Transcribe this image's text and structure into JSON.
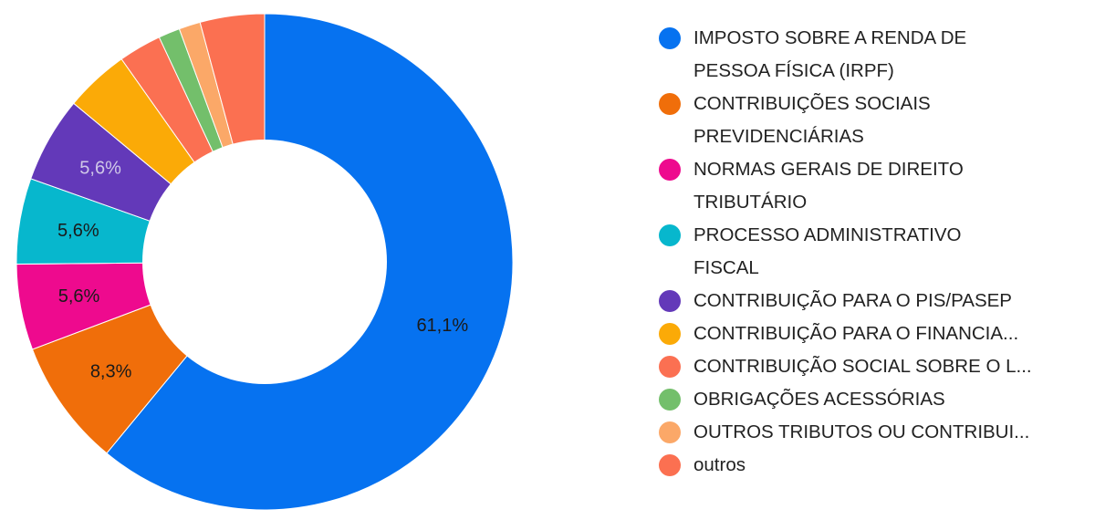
{
  "chart_data": {
    "type": "pie",
    "variant": "donut",
    "legend_position": "right",
    "slices": [
      {
        "name": "IMPOSTO SOBRE A RENDA DE PESSOA FÍSICA (IRPF)",
        "value": 61.1,
        "label": "61,1%",
        "color": "#0672f0",
        "label_color": "#1a1a1a"
      },
      {
        "name": "CONTRIBUIÇÕES SOCIAIS PREVIDENCIÁRIAS",
        "value": 8.3,
        "label": "8,3%",
        "color": "#f06e0a",
        "label_color": "#1a1a1a"
      },
      {
        "name": "NORMAS GERAIS DE DIREITO TRIBUTÁRIO",
        "value": 5.6,
        "label": "5,6%",
        "color": "#ee0a8e",
        "label_color": "#1a1a1a"
      },
      {
        "name": "PROCESSO ADMINISTRATIVO FISCAL",
        "value": 5.6,
        "label": "5,6%",
        "color": "#07b7cd",
        "label_color": "#1a1a1a"
      },
      {
        "name": "CONTRIBUIÇÃO PARA O PIS/PASEP",
        "value": 5.6,
        "label": "5,6%",
        "color": "#6339b9",
        "label_color": "#d0c8e8"
      },
      {
        "name": "CONTRIBUIÇÃO PARA O FINANCIA...",
        "value": 4.2,
        "label": "",
        "color": "#fbaa07",
        "label_color": "#1a1a1a"
      },
      {
        "name": "CONTRIBUIÇÃO SOCIAL SOBRE O L...",
        "value": 2.8,
        "label": "",
        "color": "#fb7052",
        "label_color": "#1a1a1a"
      },
      {
        "name": "OBRIGAÇÕES ACESSÓRIAS",
        "value": 1.4,
        "label": "",
        "color": "#73bf6b",
        "label_color": "#1a1a1a"
      },
      {
        "name": "OUTROS TRIBUTOS OU CONTRIBUI...",
        "value": 1.4,
        "label": "",
        "color": "#fba868",
        "label_color": "#1a1a1a"
      },
      {
        "name": "outros",
        "value": 4.2,
        "label": "",
        "color": "#fb7051",
        "label_color": "#1a1a1a"
      }
    ],
    "legend_entries": [
      {
        "lines": [
          "IMPOSTO SOBRE A RENDA DE",
          "PESSOA FÍSICA (IRPF)"
        ]
      },
      {
        "lines": [
          "CONTRIBUIÇÕES SOCIAIS",
          "PREVIDENCIÁRIAS"
        ]
      },
      {
        "lines": [
          "NORMAS GERAIS DE DIREITO",
          "TRIBUTÁRIO"
        ]
      },
      {
        "lines": [
          "PROCESSO ADMINISTRATIVO",
          "FISCAL"
        ]
      },
      {
        "lines": [
          "CONTRIBUIÇÃO PARA O PIS/PASEP"
        ]
      },
      {
        "lines": [
          "CONTRIBUIÇÃO PARA O FINANCIA..."
        ]
      },
      {
        "lines": [
          "CONTRIBUIÇÃO SOCIAL SOBRE O L..."
        ]
      },
      {
        "lines": [
          "OBRIGAÇÕES ACESSÓRIAS"
        ]
      },
      {
        "lines": [
          "OUTROS TRIBUTOS OU CONTRIBUI..."
        ]
      },
      {
        "lines": [
          "outros"
        ]
      }
    ]
  }
}
